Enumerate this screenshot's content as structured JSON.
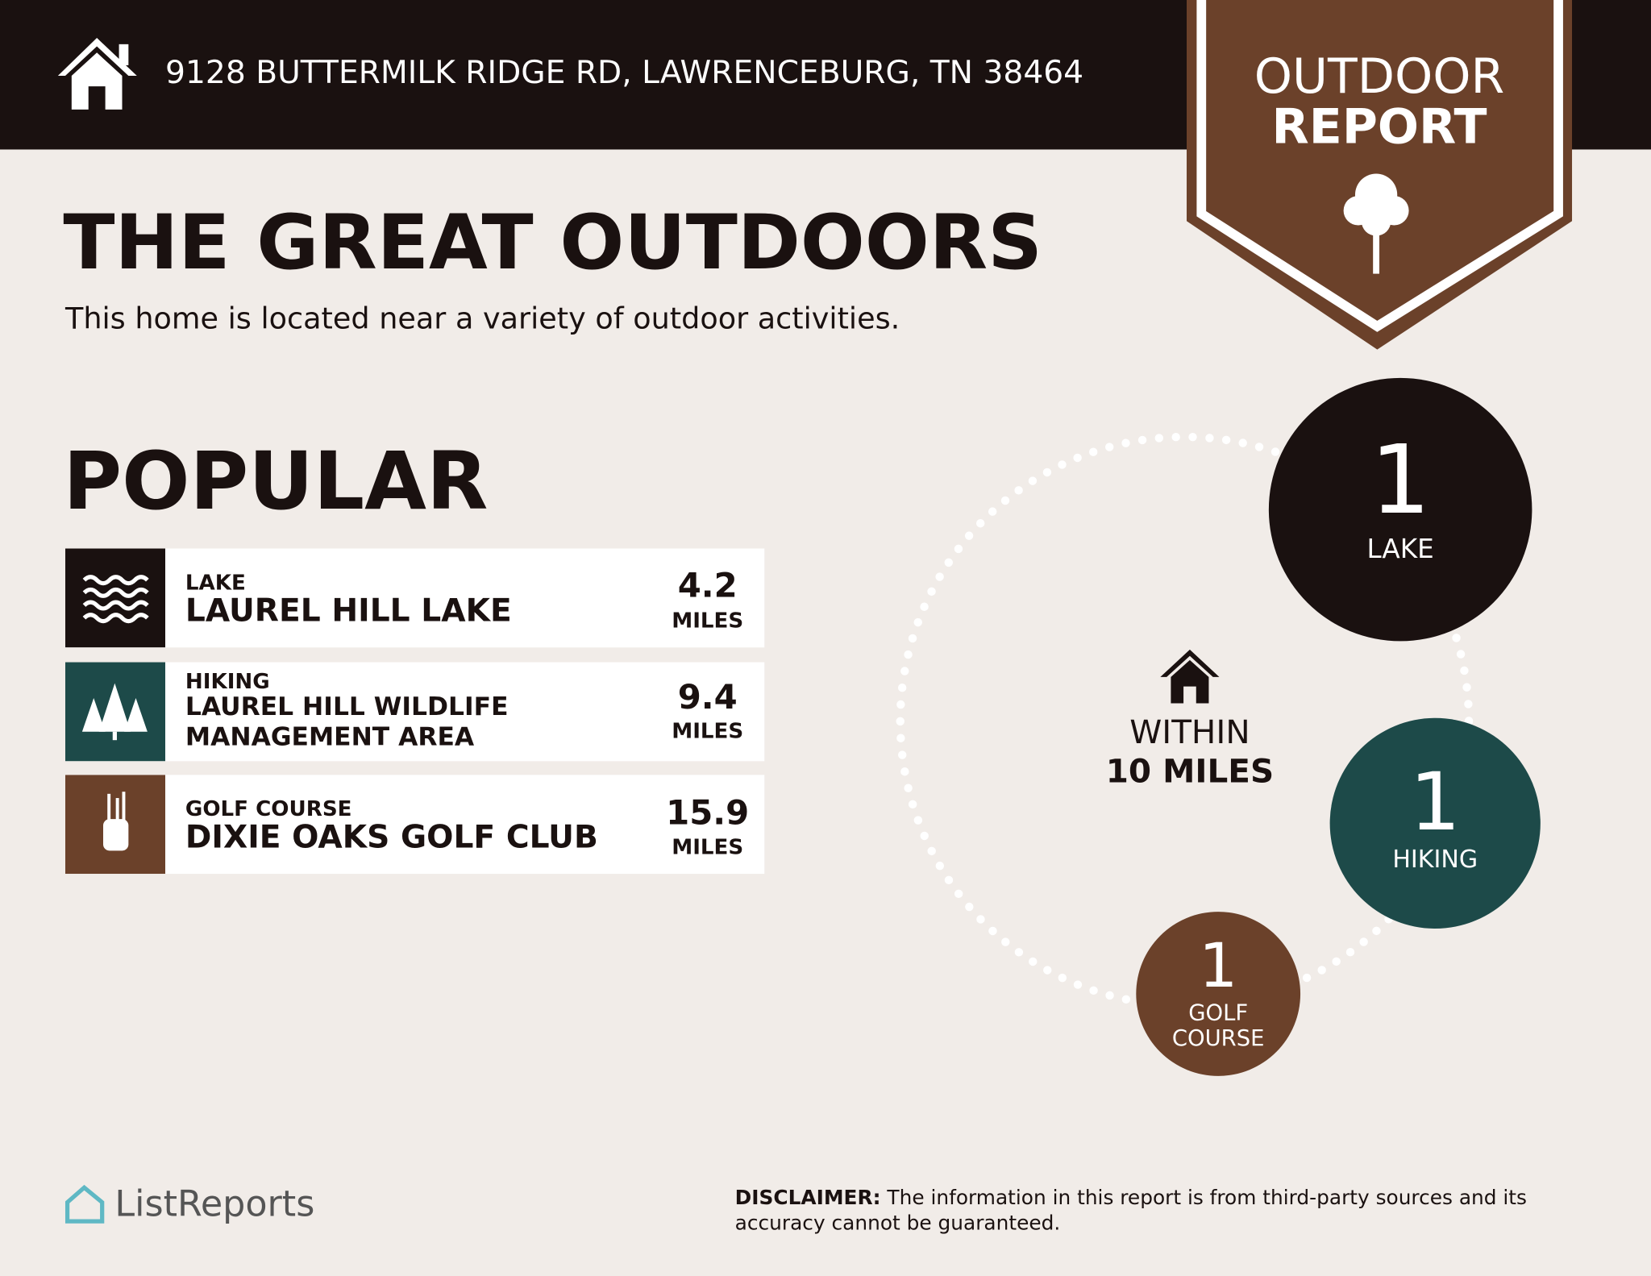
{
  "header": {
    "address": "9128 BUTTERMILK RIDGE RD, LAWRENCEBURG, TN 38464",
    "badge_top": "OUTDOOR",
    "badge_bottom": "REPORT"
  },
  "title": "THE GREAT OUTDOORS",
  "subtitle": "This home is located near a variety of outdoor activities.",
  "popular": {
    "heading": "POPULAR",
    "items": [
      {
        "category": "LAKE",
        "name": "LAUREL HILL LAKE",
        "distance": 4.2,
        "unit": "MILES"
      },
      {
        "category": "HIKING",
        "name": "LAUREL HILL WILDLIFE MANAGEMENT AREA",
        "distance": 9.4,
        "unit": "MILES"
      },
      {
        "category": "GOLF COURSE",
        "name": "DIXIE OAKS GOLF CLUB",
        "distance": 15.9,
        "unit": "MILES"
      }
    ]
  },
  "summary": {
    "within": "WITHIN",
    "radius": "10 MILES",
    "counts": [
      {
        "count": 1,
        "label": "LAKE"
      },
      {
        "count": 1,
        "label": "HIKING"
      },
      {
        "count": 1,
        "label": "GOLF COURSE"
      }
    ]
  },
  "footer": {
    "brand": "ListReports",
    "disclaimer_label": "DISCLAIMER:",
    "disclaimer": "The information in this report is from third-party sources and its accuracy cannot be guaranteed."
  }
}
